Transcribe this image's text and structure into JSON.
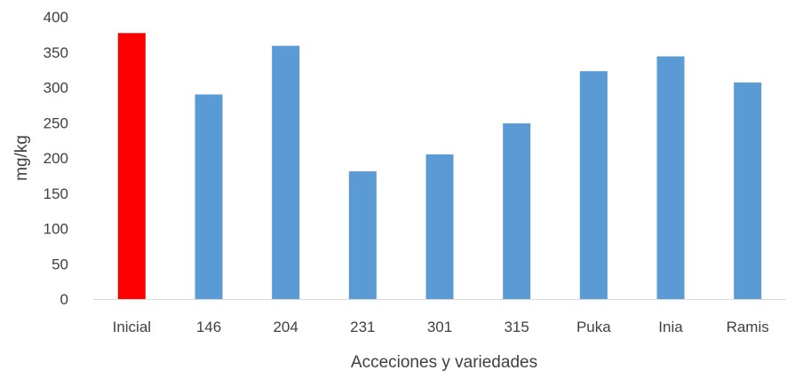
{
  "chart_data": {
    "type": "bar",
    "title": "",
    "xlabel": "Acceciones y variedades",
    "ylabel": "mg/kg",
    "categories": [
      "Inicial",
      "146",
      "204",
      "231",
      "301",
      "315",
      "Puka",
      "Inia",
      "Ramis"
    ],
    "values": [
      377,
      290,
      359,
      181,
      205,
      249,
      323,
      344,
      307
    ],
    "bar_colors": [
      "#ff0000",
      "#5b9bd5",
      "#5b9bd5",
      "#5b9bd5",
      "#5b9bd5",
      "#5b9bd5",
      "#5b9bd5",
      "#5b9bd5",
      "#5b9bd5"
    ],
    "ylim": [
      0,
      400
    ],
    "yticks": [
      0,
      50,
      100,
      150,
      200,
      250,
      300,
      350,
      400
    ],
    "grid": false,
    "legend": "none"
  }
}
